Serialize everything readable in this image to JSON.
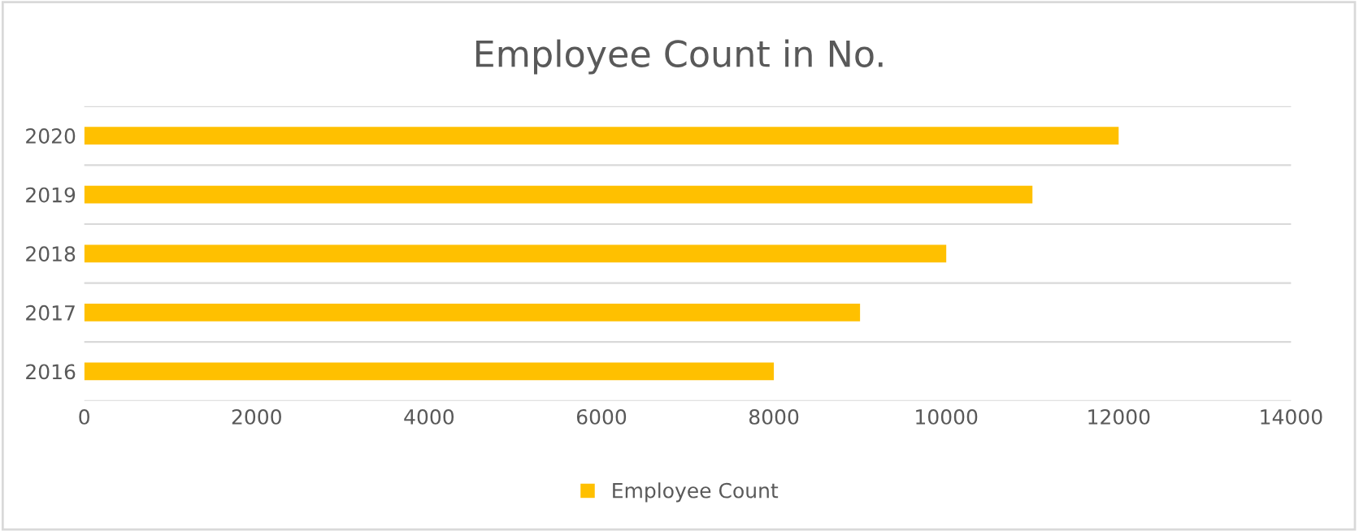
{
  "chart_data": {
    "type": "bar",
    "orientation": "horizontal",
    "title": "Employee Count in No.",
    "categories": [
      "2020",
      "2019",
      "2018",
      "2017",
      "2016"
    ],
    "series": [
      {
        "name": "Employee Count",
        "color": "#ffc000",
        "values": [
          12000,
          11000,
          10000,
          9000,
          8000
        ]
      }
    ],
    "xlim": [
      0,
      14000
    ],
    "xticks": [
      0,
      2000,
      4000,
      6000,
      8000,
      10000,
      12000,
      14000
    ],
    "grid": "y",
    "legend": "bottom"
  }
}
